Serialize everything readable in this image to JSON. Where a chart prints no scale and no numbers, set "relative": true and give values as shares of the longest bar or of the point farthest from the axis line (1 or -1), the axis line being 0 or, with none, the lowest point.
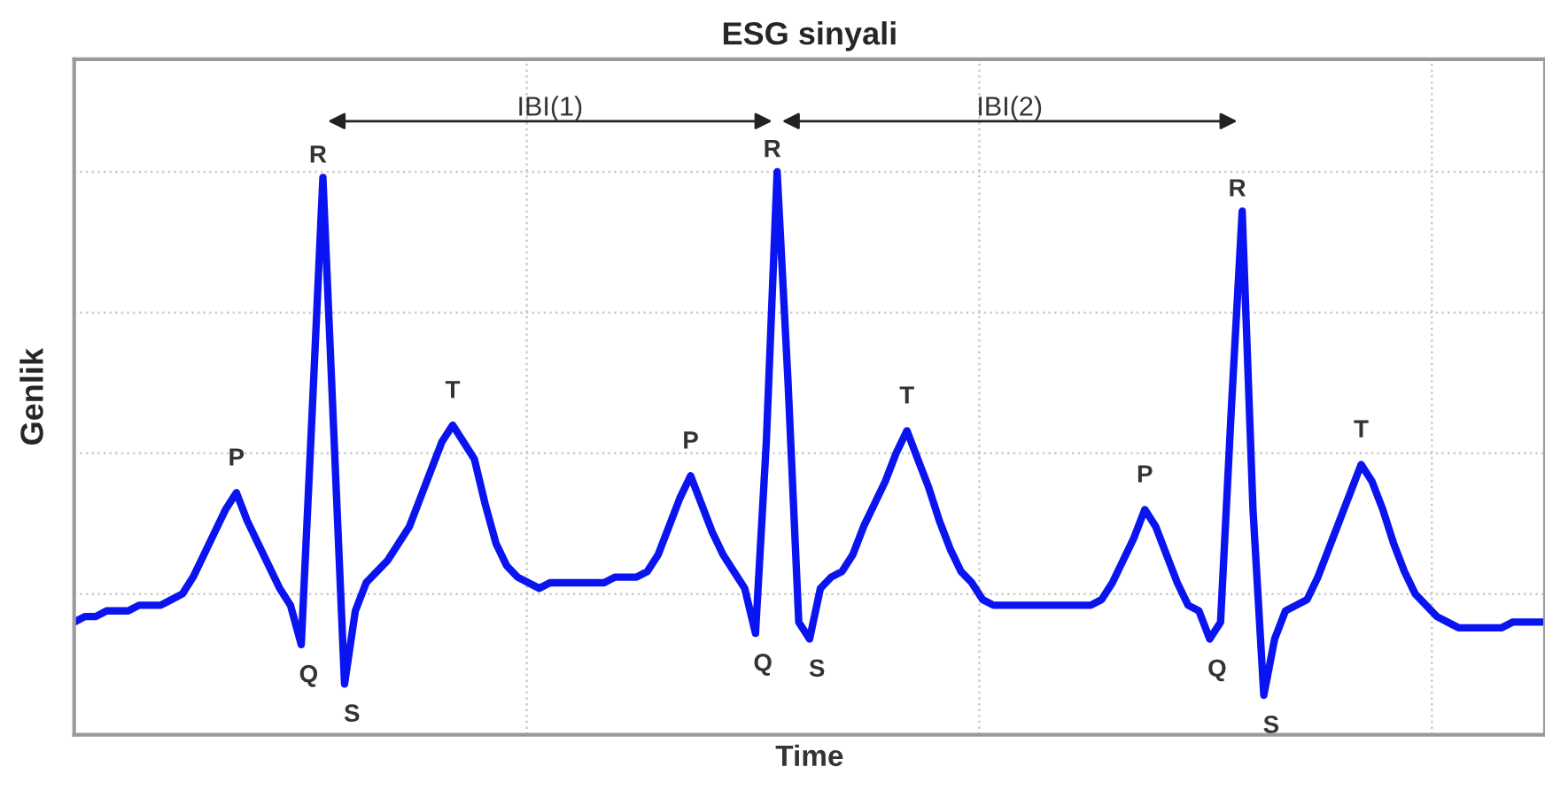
{
  "chart_data": {
    "type": "line",
    "title": "ESG sinyali",
    "xlabel": "Time",
    "ylabel": "Genlik",
    "relative": true,
    "grid": true,
    "tick_labels": false,
    "categories": [
      null,
      null,
      null,
      null,
      null,
      null,
      null,
      null,
      null,
      null,
      null,
      null,
      null,
      null,
      null,
      null,
      null,
      null,
      null,
      null,
      null,
      null,
      null,
      null,
      null,
      null,
      null,
      null,
      null,
      null,
      null,
      null,
      null,
      null,
      null,
      null,
      null,
      null,
      null,
      null,
      null,
      null,
      null,
      null,
      null,
      null,
      null,
      null,
      null,
      null,
      null,
      null,
      null,
      null,
      null,
      null,
      null,
      null,
      null,
      null,
      null,
      null,
      null,
      null,
      null,
      null,
      null,
      null,
      null,
      null,
      null,
      null,
      null,
      null,
      null,
      null,
      null,
      null,
      null,
      null,
      null,
      null,
      null,
      null,
      null,
      null,
      null,
      null,
      null,
      null,
      null,
      null,
      null,
      null,
      null,
      null,
      null,
      null,
      null,
      null,
      null,
      null,
      null,
      null,
      null,
      null,
      null,
      null,
      null,
      null,
      null,
      null,
      null,
      null,
      null,
      null,
      null,
      null,
      null,
      null,
      null,
      null,
      null,
      null,
      null,
      null,
      null,
      null,
      null,
      null,
      null,
      null,
      null,
      null,
      null,
      null,
      null
    ],
    "series": [
      {
        "color": "#0a14f0",
        "values": [
          0.2,
          0.21,
          0.21,
          0.22,
          0.22,
          0.22,
          0.23,
          0.23,
          0.23,
          0.24,
          0.25,
          0.28,
          0.32,
          0.36,
          0.4,
          0.43,
          0.38,
          0.34,
          0.3,
          0.26,
          0.23,
          0.16,
          0.57,
          0.99,
          0.54,
          0.09,
          0.22,
          0.27,
          0.29,
          0.31,
          0.34,
          0.37,
          0.42,
          0.47,
          0.52,
          0.55,
          0.52,
          0.49,
          0.41,
          0.34,
          0.3,
          0.28,
          0.27,
          0.26,
          0.27,
          0.27,
          0.27,
          0.27,
          0.27,
          0.27,
          0.28,
          0.28,
          0.28,
          0.29,
          0.32,
          0.37,
          0.42,
          0.46,
          0.41,
          0.36,
          0.32,
          0.29,
          0.26,
          0.18,
          0.52,
          1.0,
          0.63,
          0.2,
          0.17,
          0.26,
          0.28,
          0.29,
          0.32,
          0.37,
          0.41,
          0.45,
          0.5,
          0.54,
          0.49,
          0.44,
          0.38,
          0.33,
          0.29,
          0.27,
          0.24,
          0.23,
          0.23,
          0.23,
          0.23,
          0.23,
          0.23,
          0.23,
          0.23,
          0.23,
          0.23,
          0.24,
          0.27,
          0.31,
          0.35,
          0.4,
          0.37,
          0.32,
          0.27,
          0.23,
          0.22,
          0.17,
          0.2,
          0.58,
          0.93,
          0.4,
          0.07,
          0.17,
          0.22,
          0.23,
          0.24,
          0.28,
          0.33,
          0.38,
          0.43,
          0.48,
          0.45,
          0.4,
          0.34,
          0.29,
          0.25,
          0.23,
          0.21,
          0.2,
          0.19,
          0.19,
          0.19,
          0.19,
          0.19,
          0.2,
          0.2,
          0.2,
          0.2
        ]
      }
    ],
    "annotations": [
      {
        "text": "P",
        "y": 0.43
      },
      {
        "text": "Q",
        "y": 0.16
      },
      {
        "text": "R",
        "y": 0.99
      },
      {
        "text": "S",
        "y": 0.09
      },
      {
        "text": "T",
        "y": 0.55
      },
      {
        "text": "P",
        "y": 0.46
      },
      {
        "text": "Q",
        "y": 0.18
      },
      {
        "text": "R",
        "y": 1.0
      },
      {
        "text": "S",
        "y": 0.17
      },
      {
        "text": "T",
        "y": 0.54
      },
      {
        "text": "P",
        "y": 0.4
      },
      {
        "text": "Q",
        "y": 0.17
      },
      {
        "text": "R",
        "y": 0.93
      },
      {
        "text": "S",
        "y": 0.07
      },
      {
        "text": "T",
        "y": 0.48
      },
      "IBI(1)",
      "IBI(2)"
    ]
  }
}
